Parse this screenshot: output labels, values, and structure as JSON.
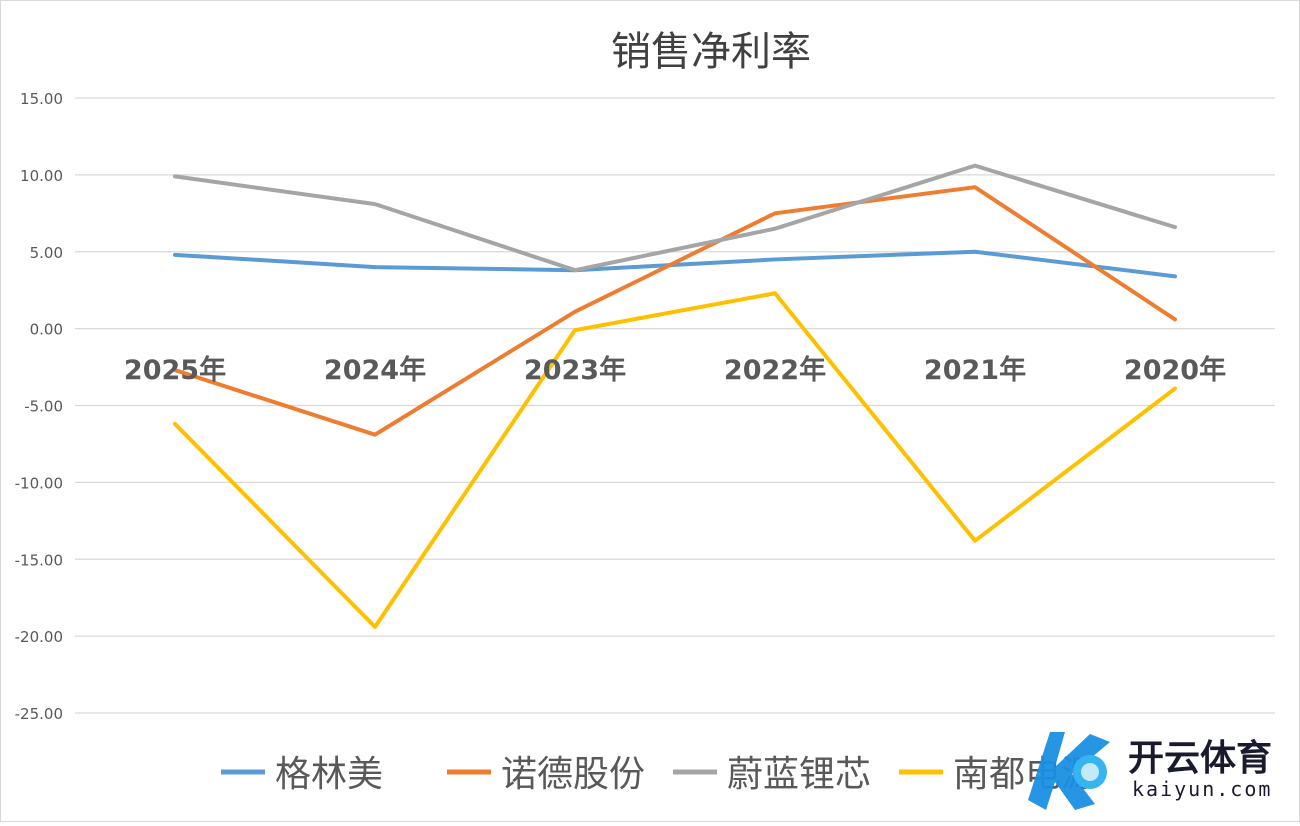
{
  "chart_data": {
    "type": "line",
    "title": "销售净利率",
    "categories": [
      "2025年",
      "2024年",
      "2023年",
      "2022年",
      "2021年",
      "2020年"
    ],
    "xlabel": "",
    "ylabel": "",
    "ylim": [
      -25,
      15
    ],
    "yticks": [
      "15.00",
      "10.00",
      "5.00",
      "0.00",
      "-5.00",
      "-10.00",
      "-15.00",
      "-20.00",
      "-25.00"
    ],
    "ytick_values": [
      15,
      10,
      5,
      0,
      -5,
      -10,
      -15,
      -20,
      -25
    ],
    "grid": true,
    "legend_position": "bottom",
    "series": [
      {
        "name": "格林美",
        "color": "#5b9bd5",
        "values": [
          4.8,
          4.0,
          3.8,
          4.5,
          5.0,
          3.4
        ]
      },
      {
        "name": "诺德股份",
        "color": "#ed7d31",
        "values": [
          -2.7,
          -6.9,
          1.1,
          7.5,
          9.2,
          0.6
        ]
      },
      {
        "name": "蔚蓝锂芯",
        "color": "#a5a5a5",
        "values": [
          9.9,
          8.1,
          3.8,
          6.5,
          10.6,
          6.6
        ]
      },
      {
        "name": "南都电源",
        "color": "#ffc000",
        "values": [
          -6.2,
          -19.4,
          -0.1,
          2.3,
          -13.8,
          -3.9
        ]
      }
    ]
  },
  "watermark": {
    "brand": "开云体育",
    "url": "kaiyun.com"
  }
}
